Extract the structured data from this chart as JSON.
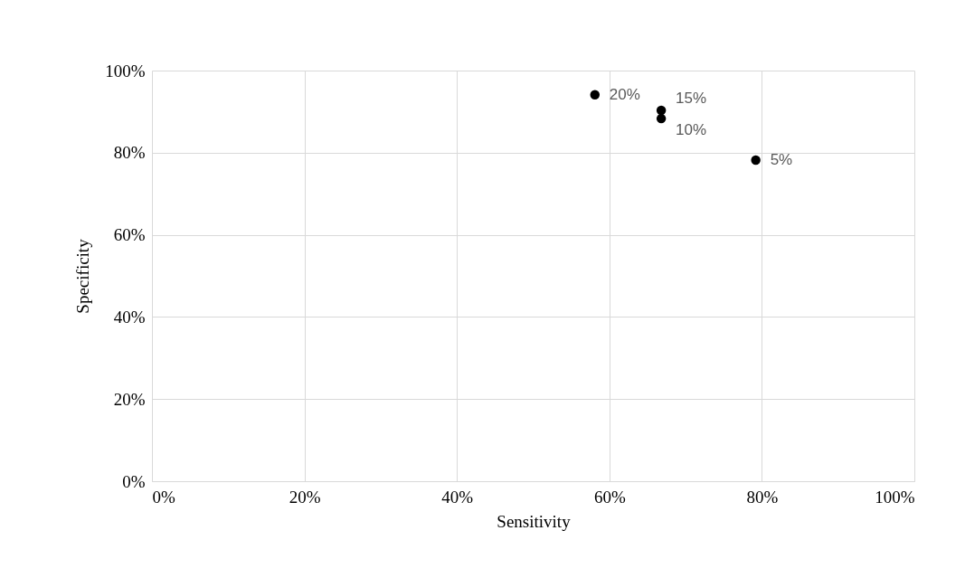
{
  "chart_data": {
    "type": "scatter",
    "xlabel": "Sensitivity",
    "ylabel": "Specificity",
    "series": [
      {
        "name": "5%",
        "color": "#000000",
        "x": [
          79.2
        ],
        "values": [
          78.2
        ]
      },
      {
        "name": "10%",
        "color": "#000000",
        "x": [
          66.8
        ],
        "values": [
          88.3
        ]
      },
      {
        "name": "15%",
        "color": "#000000",
        "x": [
          66.8
        ],
        "values": [
          90.3
        ]
      },
      {
        "name": "20%",
        "color": "#000000",
        "x": [
          58.1
        ],
        "values": [
          94.1
        ]
      }
    ],
    "marker": "circle",
    "xlim": [
      0,
      100
    ],
    "ylim": [
      0,
      100
    ],
    "xticks": [
      {
        "value": 0,
        "label": "0%"
      },
      {
        "value": 20,
        "label": "20%"
      },
      {
        "value": 40,
        "label": "40%"
      },
      {
        "value": 60,
        "label": "60%"
      },
      {
        "value": 80,
        "label": "80%"
      },
      {
        "value": 100,
        "label": "100%"
      }
    ],
    "yticks": [
      {
        "value": 0,
        "label": "0%"
      },
      {
        "value": 20,
        "label": "20%"
      },
      {
        "value": 40,
        "label": "40%"
      },
      {
        "value": 60,
        "label": "60%"
      },
      {
        "value": 80,
        "label": "80%"
      },
      {
        "value": 100,
        "label": "100%"
      }
    ],
    "grid": true
  }
}
